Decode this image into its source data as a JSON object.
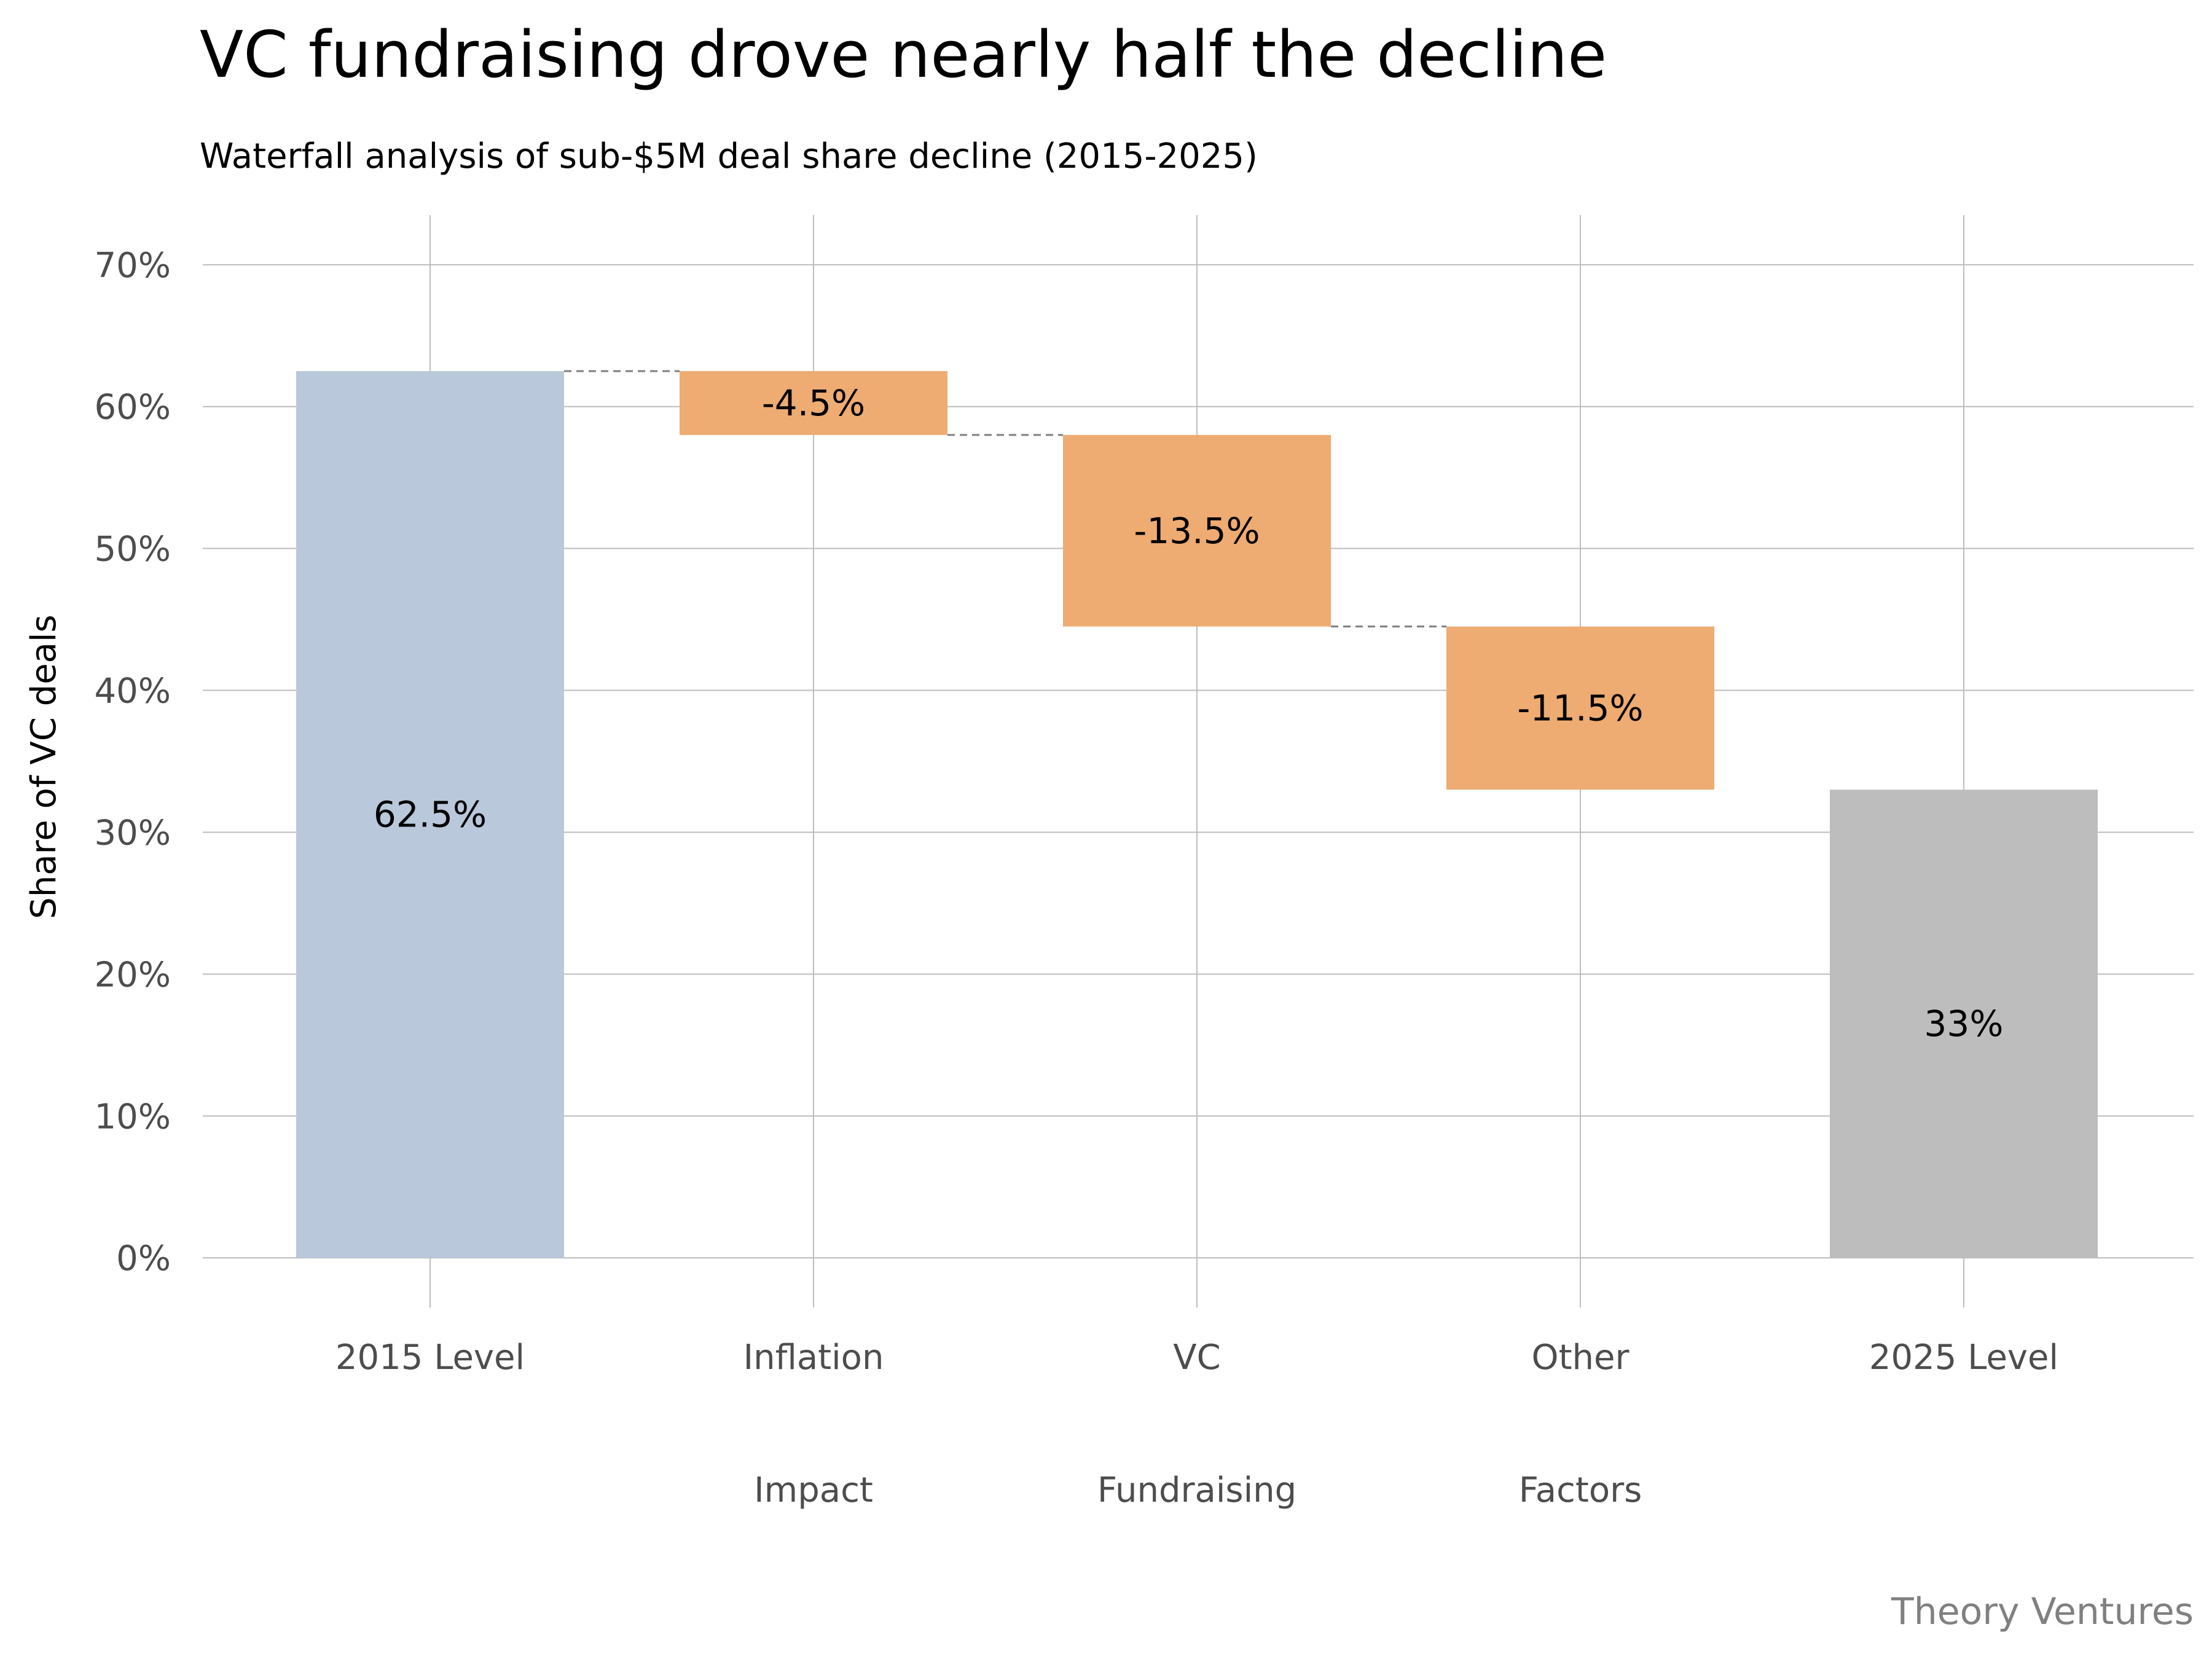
{
  "title": "VC fundraising drove nearly half the decline",
  "subtitle": "Waterfall analysis of sub-$5M deal share decline (2015-2025)",
  "caption": "Theory Ventures",
  "colors": {
    "start": "#b9c8da",
    "decrease": "#eeab72",
    "end": "#bdbdbd",
    "grid": "#bdbdbd",
    "connector": "#7f7f7f"
  },
  "chart_data": {
    "type": "waterfall",
    "ylabel": "Share of VC deals",
    "ylim": [
      -3.5,
      73.5
    ],
    "yticks": [
      0,
      10,
      20,
      30,
      40,
      50,
      60,
      70
    ],
    "ytick_labels": [
      "0%",
      "10%",
      "20%",
      "30%",
      "40%",
      "50%",
      "60%",
      "70%"
    ],
    "steps": [
      {
        "category": [
          "2015 Level"
        ],
        "kind": "total",
        "start": 0,
        "end": 62.5,
        "label": "62.5%"
      },
      {
        "category": [
          "Inflation",
          "Impact"
        ],
        "kind": "decrease",
        "start": 62.5,
        "end": 58,
        "label": "-4.5%"
      },
      {
        "category": [
          "VC",
          "Fundraising"
        ],
        "kind": "decrease",
        "start": 58,
        "end": 44.5,
        "label": "-13.5%"
      },
      {
        "category": [
          "Other",
          "Factors"
        ],
        "kind": "decrease",
        "start": 44.5,
        "end": 33,
        "label": "-11.5%"
      },
      {
        "category": [
          "2025 Level"
        ],
        "kind": "total",
        "start": 0,
        "end": 33,
        "label": "33%"
      }
    ]
  }
}
